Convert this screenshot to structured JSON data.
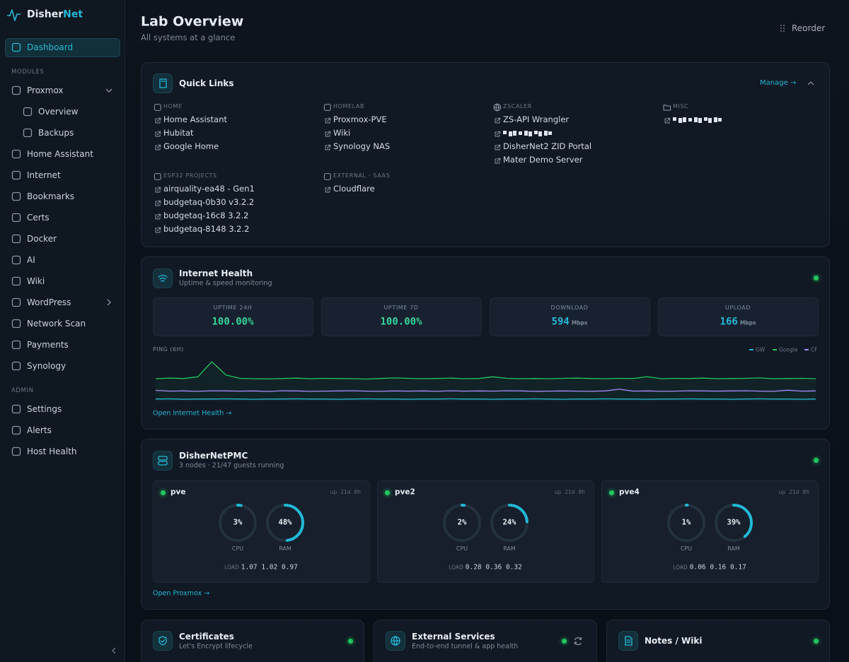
{
  "sidebar": {
    "brand": "Disher",
    "brand_accent": "Net",
    "nav": [
      {
        "label": "Dashboard",
        "active": true
      },
      {
        "section": "MODULES"
      },
      {
        "label": "Proxmox",
        "chevron": "down"
      },
      {
        "label": "Overview",
        "sub": true
      },
      {
        "label": "Backups",
        "sub": true
      },
      {
        "label": "Home Assistant"
      },
      {
        "label": "Internet"
      },
      {
        "label": "Bookmarks"
      },
      {
        "label": "Certs"
      },
      {
        "label": "Docker"
      },
      {
        "label": "AI"
      },
      {
        "label": "Wiki"
      },
      {
        "label": "WordPress",
        "chevron": "right"
      },
      {
        "label": "Network Scan"
      },
      {
        "label": "Payments"
      },
      {
        "label": "Synology"
      },
      {
        "section": "ADMIN"
      },
      {
        "label": "Settings"
      },
      {
        "label": "Alerts"
      },
      {
        "label": "Host Health"
      }
    ]
  },
  "header": {
    "title": "Lab Overview",
    "subtitle": "All systems at a glance",
    "reorder": "Reorder"
  },
  "quick_links": {
    "title": "Quick Links",
    "manage": "Manage →",
    "groups": [
      {
        "name": "HOME",
        "links": [
          "Home Assistant",
          "Hubitat",
          "Google Home"
        ]
      },
      {
        "name": "HOMELAB",
        "links": [
          "Proxmox-PVE",
          "Wiki",
          "Synology NAS"
        ]
      },
      {
        "name": "ZSCALER",
        "links": [
          "ZS-API Wrangler",
          null,
          "DisherNet2 ZID Portal",
          "Mater Demo Server"
        ]
      },
      {
        "name": "MISC",
        "links": [
          null
        ]
      },
      {
        "name": "ESP32 PROJECTS",
        "links": [
          "airquality-ea48 - Gen1",
          "budgetaq-0b30 v3.2.2",
          "budgetaq-16c8 3.2.2",
          "budgetaq-8148 3.2.2"
        ]
      },
      {
        "name": "EXTERNAL - SAAS",
        "links": [
          "Cloudflare"
        ]
      }
    ]
  },
  "internet_health": {
    "title": "Internet Health",
    "subtitle": "Uptime & speed monitoring",
    "stats": [
      {
        "label": "UPTIME 24H",
        "value": "100.00%",
        "color": "#34d399"
      },
      {
        "label": "UPTIME 7D",
        "value": "100.00%",
        "color": "#34d399"
      },
      {
        "label": "DOWNLOAD",
        "value": "594",
        "unit": "Mbps",
        "color": "#22b8d6"
      },
      {
        "label": "UPLOAD",
        "value": "166",
        "unit": "Mbps",
        "color": "#22b8d6"
      }
    ],
    "ping": {
      "type": "line",
      "title": "PING (6H)",
      "series": [
        {
          "name": "GW",
          "color": "#22b8d6",
          "values": [
            1.2,
            1.3,
            1.1,
            1.2,
            1.2,
            1.3,
            1.2,
            1.1,
            1.2,
            1.2,
            1.3,
            1.2,
            1.2,
            1.1,
            1.2,
            1.3,
            1.2,
            1.2,
            1.1,
            1.2,
            1.2,
            1.3,
            1.2,
            1.2,
            1.1,
            1.2,
            1.2,
            1.3,
            1.2,
            1.1,
            1.2,
            1.2,
            1.3,
            1.2,
            1.2,
            1.1,
            1.2,
            1.2,
            1.3,
            1.2,
            1.2,
            1.1,
            1.2,
            1.3,
            1.2,
            1.2,
            1.1,
            1.2
          ]
        },
        {
          "name": "Google",
          "color": "#22c55e",
          "values": [
            12,
            12.3,
            12.1,
            13,
            21,
            14,
            12.2,
            12,
            11.9,
            12.1,
            12.3,
            12,
            12.2,
            12.1,
            12,
            11.8,
            12.1,
            12.4,
            12.2,
            12,
            12.1,
            12.3,
            12,
            12.1,
            13,
            12.2,
            12,
            12.1,
            12,
            12.2,
            12.3,
            12.1,
            12,
            12.2,
            12.1,
            13.1,
            12,
            12.2,
            12.1,
            12.3,
            12,
            12.1,
            12.2,
            12.4,
            12,
            12.1,
            12.2,
            12
          ]
        },
        {
          "name": "CF",
          "color": "#a78bfa",
          "values": [
            5.8,
            5.4,
            5.5,
            5.3,
            5.6,
            5.5,
            5.4,
            5.5,
            5.2,
            5.6,
            5.5,
            5.3,
            5.4,
            5.5,
            5.6,
            5.4,
            5.3,
            5.5,
            5.4,
            5.5,
            5.3,
            5.6,
            5.4,
            5.5,
            5.4,
            5.6,
            5.5,
            5.3,
            5.4,
            5.5,
            5.4,
            5.3,
            5.5,
            6.4,
            5.4,
            5.5,
            5.3,
            5.4,
            5.6,
            5.5,
            5.4,
            5.5,
            5.6,
            5.4,
            5.3,
            5.9,
            5.4,
            5.5
          ]
        }
      ]
    },
    "open": "Open Internet Health →"
  },
  "proxmox": {
    "title": "DisherNetPMC",
    "subtitle": "3 nodes · 21/47 guests running",
    "gauge_labels": [
      "CPU",
      "RAM"
    ],
    "load_label": "LOAD",
    "nodes": [
      {
        "name": "pve",
        "uptime": "up 21d 8h",
        "values": [
          3,
          48
        ],
        "value_labels": [
          "3%",
          "48%"
        ],
        "load": "1.07 1.02 0.97"
      },
      {
        "name": "pve2",
        "uptime": "up 21d 8h",
        "values": [
          2,
          24
        ],
        "value_labels": [
          "2%",
          "24%"
        ],
        "load": "0.28 0.36 0.32"
      },
      {
        "name": "pve4",
        "uptime": "up 21d 8h",
        "values": [
          1,
          39
        ],
        "value_labels": [
          "1%",
          "39%"
        ],
        "load": "0.06 0.16 0.17"
      }
    ],
    "open": "Open Proxmox →"
  },
  "bottom_cards": [
    {
      "title": "Certificates",
      "subtitle": "Let's Encrypt lifecycle",
      "icon": "shield"
    },
    {
      "title": "External Services",
      "subtitle": "End-to-end tunnel & app health",
      "icon": "globe",
      "refresh": true
    },
    {
      "title": "Notes / Wiki",
      "icon": "doc"
    }
  ]
}
